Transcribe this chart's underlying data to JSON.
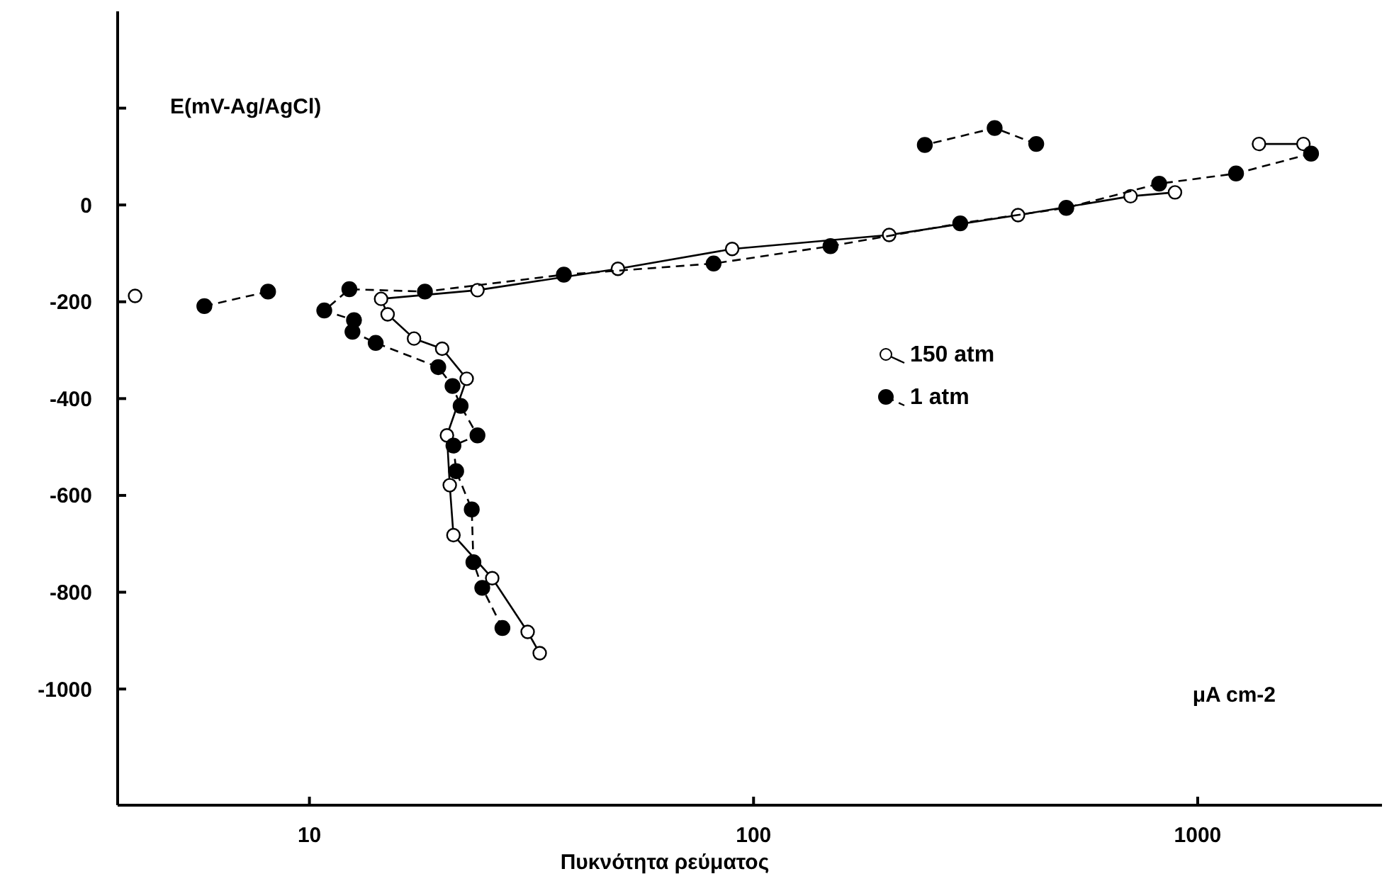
{
  "chart_data": {
    "type": "line",
    "xlabel": "Πυκνότητα ρεύματος",
    "ylabel": "E(mV-Ag/AgCl)",
    "annotations": [
      "μA cm-2"
    ],
    "log": "x",
    "xlim": [
      3.7,
      2600
    ],
    "xticks": [
      10,
      100,
      1000
    ],
    "ylim": [
      -1240,
      400
    ],
    "yticks": [
      -1000,
      -800,
      -600,
      -400,
      -200,
      0,
      {
        "value": 200,
        "label": null
      }
    ],
    "grid": false,
    "legend": "right",
    "marker": "circle",
    "series": [
      {
        "name": "150 atm",
        "color": "#000000",
        "line_style": "solid",
        "x": [
          4.05,
          null,
          33.0,
          31.0,
          25.8,
          21.1,
          20.7,
          20.4,
          22.6,
          19.9,
          17.2,
          15.0,
          14.5,
          23.9,
          49.5,
          89.5,
          202,
          394,
          706,
          889,
          null,
          1374,
          1730
        ],
        "values": [
          -188,
          null,
          -926,
          -882,
          -771,
          -682,
          -579,
          -476,
          -359,
          -297,
          -276,
          -226,
          -194,
          -176,
          -132,
          -91,
          -62,
          -21,
          18,
          26,
          null,
          126,
          126
        ]
      },
      {
        "name": "1 atm",
        "color": "#000000",
        "line_style": "dashed",
        "x": [
          5.8,
          8.07,
          null,
          27.2,
          24.5,
          23.4,
          23.2,
          21.4,
          21.1,
          23.9,
          21.9,
          21.0,
          19.5,
          14.1,
          12.5,
          12.6,
          10.8,
          12.3,
          18.2,
          37.4,
          81.3,
          149,
          292,
          506,
          819,
          1220,
          1800,
          null,
          433,
          349,
          243
        ],
        "values": [
          -209,
          -179,
          null,
          -874,
          -791,
          -738,
          -629,
          -550,
          -497,
          -476,
          -415,
          -374,
          -335,
          -285,
          -262,
          -238,
          -218,
          -174,
          -179,
          -144,
          -121,
          -85,
          -38,
          -6,
          44,
          65,
          106,
          null,
          126,
          159,
          124
        ]
      }
    ]
  }
}
